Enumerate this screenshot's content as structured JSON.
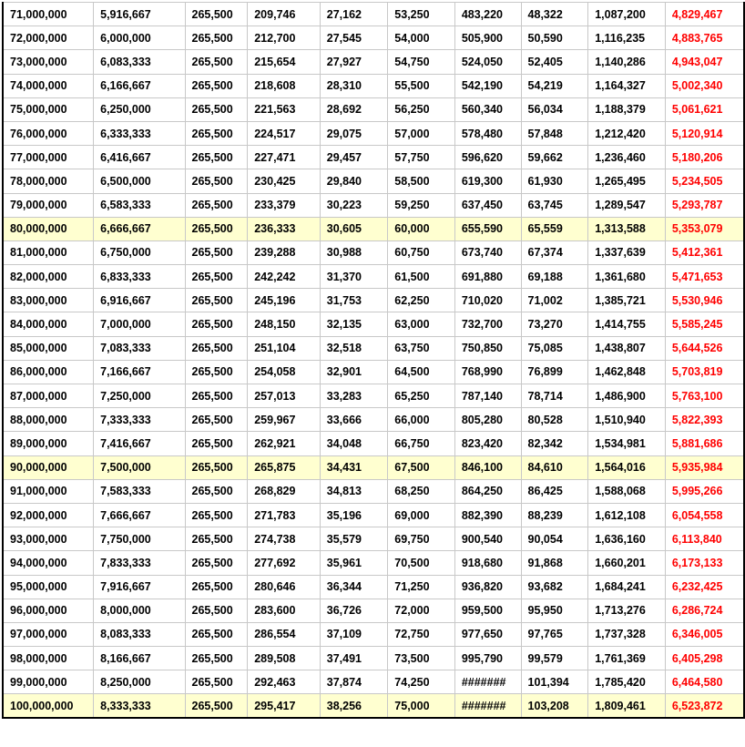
{
  "table": {
    "highlight_color": "#ffffd0",
    "last_column_color": "#ff0000",
    "highlighted_rows": [
      9,
      19,
      29
    ],
    "rows": [
      [
        "71,000,000",
        "5,916,667",
        "265,500",
        "209,746",
        "27,162",
        "53,250",
        "483,220",
        "48,322",
        "1,087,200",
        "4,829,467"
      ],
      [
        "72,000,000",
        "6,000,000",
        "265,500",
        "212,700",
        "27,545",
        "54,000",
        "505,900",
        "50,590",
        "1,116,235",
        "4,883,765"
      ],
      [
        "73,000,000",
        "6,083,333",
        "265,500",
        "215,654",
        "27,927",
        "54,750",
        "524,050",
        "52,405",
        "1,140,286",
        "4,943,047"
      ],
      [
        "74,000,000",
        "6,166,667",
        "265,500",
        "218,608",
        "28,310",
        "55,500",
        "542,190",
        "54,219",
        "1,164,327",
        "5,002,340"
      ],
      [
        "75,000,000",
        "6,250,000",
        "265,500",
        "221,563",
        "28,692",
        "56,250",
        "560,340",
        "56,034",
        "1,188,379",
        "5,061,621"
      ],
      [
        "76,000,000",
        "6,333,333",
        "265,500",
        "224,517",
        "29,075",
        "57,000",
        "578,480",
        "57,848",
        "1,212,420",
        "5,120,914"
      ],
      [
        "77,000,000",
        "6,416,667",
        "265,500",
        "227,471",
        "29,457",
        "57,750",
        "596,620",
        "59,662",
        "1,236,460",
        "5,180,206"
      ],
      [
        "78,000,000",
        "6,500,000",
        "265,500",
        "230,425",
        "29,840",
        "58,500",
        "619,300",
        "61,930",
        "1,265,495",
        "5,234,505"
      ],
      [
        "79,000,000",
        "6,583,333",
        "265,500",
        "233,379",
        "30,223",
        "59,250",
        "637,450",
        "63,745",
        "1,289,547",
        "5,293,787"
      ],
      [
        "80,000,000",
        "6,666,667",
        "265,500",
        "236,333",
        "30,605",
        "60,000",
        "655,590",
        "65,559",
        "1,313,588",
        "5,353,079"
      ],
      [
        "81,000,000",
        "6,750,000",
        "265,500",
        "239,288",
        "30,988",
        "60,750",
        "673,740",
        "67,374",
        "1,337,639",
        "5,412,361"
      ],
      [
        "82,000,000",
        "6,833,333",
        "265,500",
        "242,242",
        "31,370",
        "61,500",
        "691,880",
        "69,188",
        "1,361,680",
        "5,471,653"
      ],
      [
        "83,000,000",
        "6,916,667",
        "265,500",
        "245,196",
        "31,753",
        "62,250",
        "710,020",
        "71,002",
        "1,385,721",
        "5,530,946"
      ],
      [
        "84,000,000",
        "7,000,000",
        "265,500",
        "248,150",
        "32,135",
        "63,000",
        "732,700",
        "73,270",
        "1,414,755",
        "5,585,245"
      ],
      [
        "85,000,000",
        "7,083,333",
        "265,500",
        "251,104",
        "32,518",
        "63,750",
        "750,850",
        "75,085",
        "1,438,807",
        "5,644,526"
      ],
      [
        "86,000,000",
        "7,166,667",
        "265,500",
        "254,058",
        "32,901",
        "64,500",
        "768,990",
        "76,899",
        "1,462,848",
        "5,703,819"
      ],
      [
        "87,000,000",
        "7,250,000",
        "265,500",
        "257,013",
        "33,283",
        "65,250",
        "787,140",
        "78,714",
        "1,486,900",
        "5,763,100"
      ],
      [
        "88,000,000",
        "7,333,333",
        "265,500",
        "259,967",
        "33,666",
        "66,000",
        "805,280",
        "80,528",
        "1,510,940",
        "5,822,393"
      ],
      [
        "89,000,000",
        "7,416,667",
        "265,500",
        "262,921",
        "34,048",
        "66,750",
        "823,420",
        "82,342",
        "1,534,981",
        "5,881,686"
      ],
      [
        "90,000,000",
        "7,500,000",
        "265,500",
        "265,875",
        "34,431",
        "67,500",
        "846,100",
        "84,610",
        "1,564,016",
        "5,935,984"
      ],
      [
        "91,000,000",
        "7,583,333",
        "265,500",
        "268,829",
        "34,813",
        "68,250",
        "864,250",
        "86,425",
        "1,588,068",
        "5,995,266"
      ],
      [
        "92,000,000",
        "7,666,667",
        "265,500",
        "271,783",
        "35,196",
        "69,000",
        "882,390",
        "88,239",
        "1,612,108",
        "6,054,558"
      ],
      [
        "93,000,000",
        "7,750,000",
        "265,500",
        "274,738",
        "35,579",
        "69,750",
        "900,540",
        "90,054",
        "1,636,160",
        "6,113,840"
      ],
      [
        "94,000,000",
        "7,833,333",
        "265,500",
        "277,692",
        "35,961",
        "70,500",
        "918,680",
        "91,868",
        "1,660,201",
        "6,173,133"
      ],
      [
        "95,000,000",
        "7,916,667",
        "265,500",
        "280,646",
        "36,344",
        "71,250",
        "936,820",
        "93,682",
        "1,684,241",
        "6,232,425"
      ],
      [
        "96,000,000",
        "8,000,000",
        "265,500",
        "283,600",
        "36,726",
        "72,000",
        "959,500",
        "95,950",
        "1,713,276",
        "6,286,724"
      ],
      [
        "97,000,000",
        "8,083,333",
        "265,500",
        "286,554",
        "37,109",
        "72,750",
        "977,650",
        "97,765",
        "1,737,328",
        "6,346,005"
      ],
      [
        "98,000,000",
        "8,166,667",
        "265,500",
        "289,508",
        "37,491",
        "73,500",
        "995,790",
        "99,579",
        "1,761,369",
        "6,405,298"
      ],
      [
        "99,000,000",
        "8,250,000",
        "265,500",
        "292,463",
        "37,874",
        "74,250",
        "#######",
        "101,394",
        "1,785,420",
        "6,464,580"
      ],
      [
        "100,000,000",
        "8,333,333",
        "265,500",
        "295,417",
        "38,256",
        "75,000",
        "#######",
        "103,208",
        "1,809,461",
        "6,523,872"
      ]
    ]
  }
}
